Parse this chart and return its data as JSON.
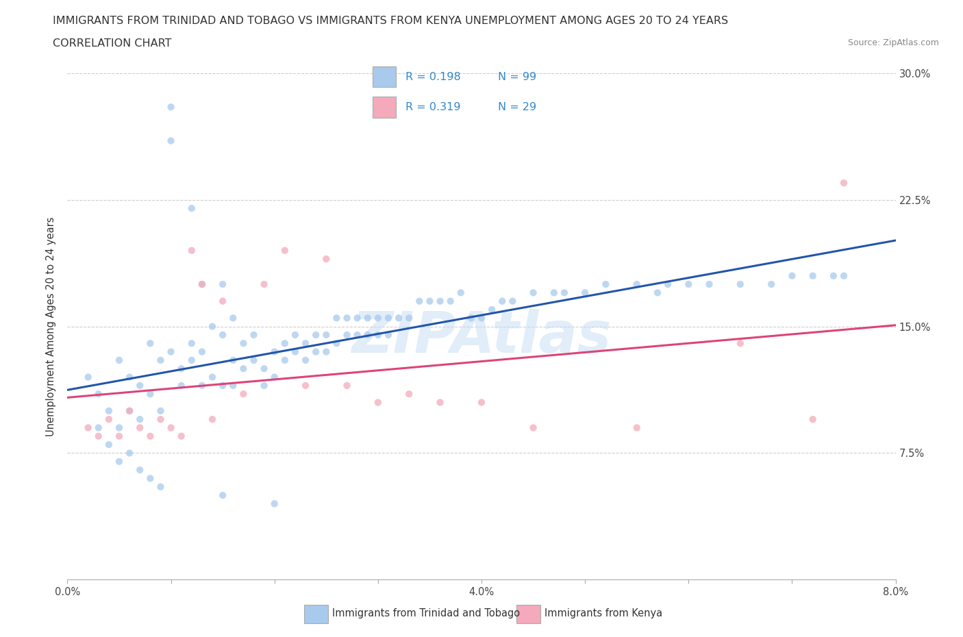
{
  "title_line1": "IMMIGRANTS FROM TRINIDAD AND TOBAGO VS IMMIGRANTS FROM KENYA UNEMPLOYMENT AMONG AGES 20 TO 24 YEARS",
  "title_line2": "CORRELATION CHART",
  "source": "Source: ZipAtlas.com",
  "ylabel": "Unemployment Among Ages 20 to 24 years",
  "xlim": [
    0.0,
    0.08
  ],
  "ylim": [
    0.0,
    0.3
  ],
  "xticks": [
    0.0,
    0.01,
    0.02,
    0.03,
    0.04,
    0.05,
    0.06,
    0.07,
    0.08
  ],
  "xticklabels": [
    "0.0%",
    "",
    "",
    "",
    "4.0%",
    "",
    "",
    "",
    "8.0%"
  ],
  "yticks": [
    0.0,
    0.075,
    0.15,
    0.225,
    0.3
  ],
  "yticklabels_right": [
    "",
    "7.5%",
    "15.0%",
    "22.5%",
    "30.0%"
  ],
  "color_blue": "#A8CAED",
  "color_pink": "#F4AABB",
  "line_blue": "#2255AA",
  "line_pink": "#DD4477",
  "r_blue": 0.198,
  "n_blue": 99,
  "r_pink": 0.319,
  "n_pink": 29,
  "legend_label_blue": "Immigrants from Trinidad and Tobago",
  "legend_label_pink": "Immigrants from Kenya",
  "watermark": "ZIPAtlas",
  "title_fontsize": 11.5,
  "axis_fontsize": 10.5,
  "scatter_alpha": 0.75,
  "scatter_size": 55,
  "trinidad_x": [
    0.002,
    0.003,
    0.004,
    0.005,
    0.005,
    0.006,
    0.006,
    0.007,
    0.007,
    0.008,
    0.008,
    0.009,
    0.009,
    0.01,
    0.01,
    0.01,
    0.011,
    0.011,
    0.012,
    0.012,
    0.012,
    0.013,
    0.013,
    0.013,
    0.014,
    0.014,
    0.015,
    0.015,
    0.015,
    0.016,
    0.016,
    0.016,
    0.017,
    0.017,
    0.018,
    0.018,
    0.019,
    0.019,
    0.02,
    0.02,
    0.021,
    0.021,
    0.022,
    0.022,
    0.023,
    0.023,
    0.024,
    0.024,
    0.025,
    0.025,
    0.026,
    0.026,
    0.027,
    0.027,
    0.028,
    0.028,
    0.029,
    0.029,
    0.03,
    0.03,
    0.031,
    0.031,
    0.032,
    0.033,
    0.034,
    0.035,
    0.036,
    0.037,
    0.038,
    0.039,
    0.04,
    0.041,
    0.042,
    0.043,
    0.045,
    0.047,
    0.048,
    0.05,
    0.052,
    0.055,
    0.057,
    0.058,
    0.06,
    0.062,
    0.065,
    0.068,
    0.07,
    0.072,
    0.074,
    0.075,
    0.003,
    0.004,
    0.005,
    0.006,
    0.007,
    0.008,
    0.009,
    0.015,
    0.02
  ],
  "trinidad_y": [
    0.12,
    0.11,
    0.1,
    0.13,
    0.09,
    0.12,
    0.1,
    0.115,
    0.095,
    0.14,
    0.11,
    0.13,
    0.1,
    0.28,
    0.26,
    0.135,
    0.125,
    0.115,
    0.14,
    0.22,
    0.13,
    0.175,
    0.135,
    0.115,
    0.15,
    0.12,
    0.175,
    0.145,
    0.115,
    0.155,
    0.13,
    0.115,
    0.14,
    0.125,
    0.145,
    0.13,
    0.125,
    0.115,
    0.135,
    0.12,
    0.14,
    0.13,
    0.145,
    0.135,
    0.14,
    0.13,
    0.145,
    0.135,
    0.145,
    0.135,
    0.155,
    0.14,
    0.155,
    0.145,
    0.155,
    0.145,
    0.155,
    0.145,
    0.155,
    0.145,
    0.155,
    0.145,
    0.155,
    0.155,
    0.165,
    0.165,
    0.165,
    0.165,
    0.17,
    0.155,
    0.155,
    0.16,
    0.165,
    0.165,
    0.17,
    0.17,
    0.17,
    0.17,
    0.175,
    0.175,
    0.17,
    0.175,
    0.175,
    0.175,
    0.175,
    0.175,
    0.18,
    0.18,
    0.18,
    0.18,
    0.09,
    0.08,
    0.07,
    0.075,
    0.065,
    0.06,
    0.055,
    0.05,
    0.045
  ],
  "kenya_x": [
    0.002,
    0.003,
    0.004,
    0.005,
    0.006,
    0.007,
    0.008,
    0.009,
    0.01,
    0.011,
    0.012,
    0.013,
    0.014,
    0.015,
    0.017,
    0.019,
    0.021,
    0.023,
    0.025,
    0.027,
    0.03,
    0.033,
    0.036,
    0.04,
    0.045,
    0.055,
    0.065,
    0.072,
    0.075
  ],
  "kenya_y": [
    0.09,
    0.085,
    0.095,
    0.085,
    0.1,
    0.09,
    0.085,
    0.095,
    0.09,
    0.085,
    0.195,
    0.175,
    0.095,
    0.165,
    0.11,
    0.175,
    0.195,
    0.115,
    0.19,
    0.115,
    0.105,
    0.11,
    0.105,
    0.105,
    0.09,
    0.09,
    0.14,
    0.095,
    0.235
  ]
}
